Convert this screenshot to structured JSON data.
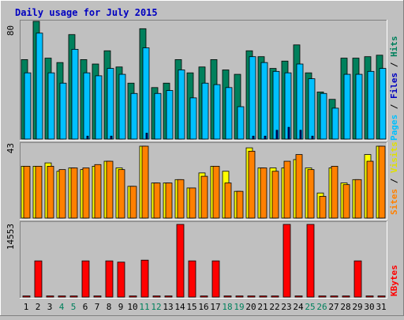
{
  "title": "Daily usage for July 2015",
  "colors": {
    "background": "#C0C0C0",
    "title": "#0000C0",
    "hits": "#00805C",
    "files": "#00C0FF",
    "pages": "#00008B",
    "visits": "#FFFF00",
    "sites": "#FF8000",
    "kbytes": "#FF0000",
    "weekend_label": "#00805C",
    "weekday_label": "#000000"
  },
  "chart_data": [
    {
      "type": "bar",
      "panel": "hits-files-pages",
      "ylabel_parts": [
        "Pages",
        "Files",
        "Hits"
      ],
      "ymax_label": "80",
      "ylim": [
        0,
        80
      ],
      "categories": [
        "1",
        "2",
        "3",
        "4",
        "5",
        "6",
        "7",
        "8",
        "9",
        "10",
        "11",
        "12",
        "13",
        "14",
        "15",
        "16",
        "17",
        "18",
        "19",
        "20",
        "21",
        "22",
        "23",
        "24",
        "25",
        "26",
        "27",
        "28",
        "29",
        "30",
        "31"
      ],
      "weekend": [
        4,
        5,
        11,
        12,
        18,
        19,
        25,
        26
      ],
      "series": [
        {
          "name": "Hits",
          "values": [
            54,
            80,
            55,
            52,
            71,
            54,
            51,
            60,
            49,
            38,
            75,
            35,
            38,
            54,
            45,
            49,
            54,
            47,
            44,
            60,
            56,
            48,
            53,
            64,
            45,
            32,
            27,
            55,
            55,
            56,
            57
          ]
        },
        {
          "name": "Files",
          "values": [
            45,
            72,
            45,
            38,
            61,
            45,
            43,
            48,
            44,
            31,
            62,
            31,
            33,
            47,
            28,
            38,
            37,
            35,
            22,
            56,
            52,
            46,
            45,
            51,
            41,
            31,
            21,
            44,
            44,
            46,
            48
          ]
        },
        {
          "name": "Pages",
          "values": [
            0,
            0,
            0,
            0,
            0,
            2,
            0,
            2,
            0,
            0,
            4,
            0,
            0,
            0,
            0,
            0,
            0,
            0,
            0,
            2,
            2,
            6,
            8,
            6,
            2,
            0,
            0,
            0,
            0,
            0,
            0
          ]
        }
      ]
    },
    {
      "type": "bar",
      "panel": "sites-visits",
      "ylabel_parts": [
        "Sites",
        "Visits"
      ],
      "ymax_label": "43",
      "ylim": [
        0,
        43
      ],
      "categories": [
        "1",
        "2",
        "3",
        "4",
        "5",
        "6",
        "7",
        "8",
        "9",
        "10",
        "11",
        "12",
        "13",
        "14",
        "15",
        "16",
        "17",
        "18",
        "19",
        "20",
        "21",
        "22",
        "23",
        "24",
        "25",
        "26",
        "27",
        "28",
        "29",
        "30",
        "31"
      ],
      "series": [
        {
          "name": "Visits",
          "values": [
            31,
            31,
            33,
            28,
            30,
            29,
            31,
            34,
            30,
            19,
            43,
            21,
            21,
            23,
            18,
            27,
            31,
            28,
            16,
            42,
            30,
            30,
            30,
            35,
            30,
            15,
            30,
            21,
            23,
            38,
            43
          ]
        },
        {
          "name": "Sites",
          "values": [
            31,
            31,
            31,
            29,
            30,
            30,
            32,
            34,
            29,
            19,
            43,
            21,
            21,
            23,
            18,
            25,
            31,
            21,
            16,
            40,
            30,
            28,
            34,
            38,
            29,
            13,
            31,
            20,
            23,
            34,
            43
          ]
        }
      ]
    },
    {
      "type": "bar",
      "panel": "kbytes",
      "ylabel_parts": [
        "KBytes"
      ],
      "ymax_label": "14553",
      "ylim": [
        0,
        14553
      ],
      "categories": [
        "1",
        "2",
        "3",
        "4",
        "5",
        "6",
        "7",
        "8",
        "9",
        "10",
        "11",
        "12",
        "13",
        "14",
        "15",
        "16",
        "17",
        "18",
        "19",
        "20",
        "21",
        "22",
        "23",
        "24",
        "25",
        "26",
        "27",
        "28",
        "29",
        "30",
        "31"
      ],
      "series": [
        {
          "name": "KBytes",
          "values": [
            0,
            7250,
            0,
            0,
            0,
            7250,
            0,
            7250,
            7000,
            0,
            7400,
            0,
            0,
            14553,
            7250,
            0,
            7250,
            0,
            0,
            0,
            0,
            0,
            14553,
            0,
            14553,
            0,
            0,
            0,
            7250,
            0,
            0
          ]
        }
      ]
    }
  ]
}
